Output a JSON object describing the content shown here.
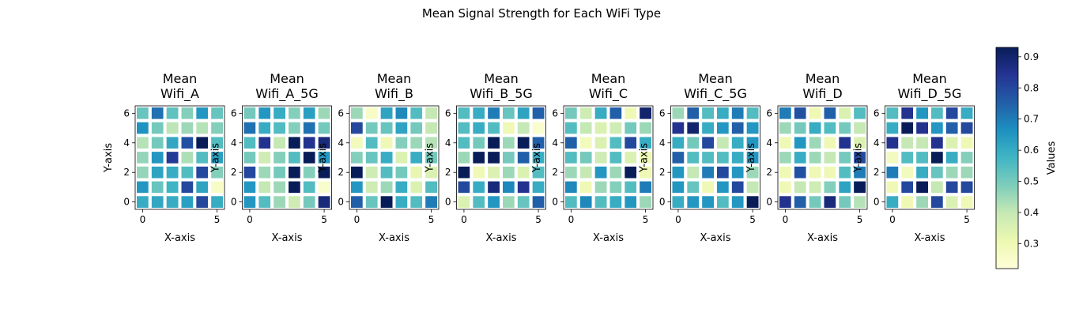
{
  "figure": {
    "title": "Mean Signal Strength for Each WiFi Type"
  },
  "colorbar": {
    "label": "Values",
    "range": [
      0.22,
      0.93
    ],
    "ticks": [
      0.3,
      0.4,
      0.5,
      0.6,
      0.7,
      0.8,
      0.9
    ],
    "colormap": "YlGnBu",
    "colormap_stops": [
      "#ffffd9",
      "#edf8b1",
      "#c7e9b4",
      "#7fcdbb",
      "#41b6c4",
      "#1d91c0",
      "#225ea8",
      "#253494",
      "#081d58"
    ]
  },
  "chart_data": [
    {
      "type": "heatmap",
      "title": "Mean\nWifi_A",
      "xlabel": "X-axis",
      "ylabel": "Y-axis",
      "xticks": [
        0,
        5
      ],
      "yticks": [
        0,
        2,
        4,
        6
      ],
      "xlim": [
        -0.5,
        5.5
      ],
      "ylim": [
        -0.5,
        6.5
      ],
      "rows_from_top": [
        [
          0.52,
          0.72,
          0.53,
          0.48,
          0.65,
          0.52
        ],
        [
          0.66,
          0.5,
          0.41,
          0.45,
          0.42,
          0.48
        ],
        [
          0.42,
          0.5,
          0.61,
          0.78,
          0.93,
          0.55
        ],
        [
          0.46,
          0.65,
          0.83,
          0.43,
          0.55,
          0.63
        ],
        [
          0.46,
          0.62,
          0.6,
          0.55,
          0.8,
          0.48
        ],
        [
          0.65,
          0.52,
          0.58,
          0.8,
          0.62,
          0.26
        ],
        [
          0.6,
          0.61,
          0.6,
          0.63,
          0.8,
          0.6
        ]
      ]
    },
    {
      "type": "heatmap",
      "title": "Mean\nWifi_A_5G",
      "xlabel": "X-axis",
      "ylabel": "Y-axis",
      "xticks": [
        0,
        5
      ],
      "yticks": [
        0,
        2,
        4,
        6
      ],
      "xlim": [
        -0.5,
        5.5
      ],
      "ylim": [
        -0.5,
        6.5
      ],
      "rows_from_top": [
        [
          0.5,
          0.65,
          0.6,
          0.48,
          0.63,
          0.45
        ],
        [
          0.72,
          0.6,
          0.55,
          0.48,
          0.72,
          0.5
        ],
        [
          0.55,
          0.85,
          0.4,
          0.93,
          0.85,
          0.88
        ],
        [
          0.5,
          0.38,
          0.48,
          0.55,
          0.93,
          0.65
        ],
        [
          0.8,
          0.45,
          0.5,
          0.93,
          0.48,
          0.93
        ],
        [
          0.65,
          0.4,
          0.45,
          0.93,
          0.55,
          0.25
        ],
        [
          0.65,
          0.55,
          0.45,
          0.38,
          0.5,
          0.88
        ]
      ]
    },
    {
      "type": "heatmap",
      "title": "Mean\nWifi_B",
      "xlabel": "X-axis",
      "ylabel": "Y-axis",
      "xticks": [
        0,
        5
      ],
      "yticks": [
        0,
        2,
        4,
        6
      ],
      "xlim": [
        -0.5,
        5.5
      ],
      "ylim": [
        -0.5,
        6.5
      ],
      "rows_from_top": [
        [
          0.45,
          0.26,
          0.62,
          0.68,
          0.55,
          0.4
        ],
        [
          0.8,
          0.5,
          0.52,
          0.62,
          0.5,
          0.4
        ],
        [
          0.28,
          0.55,
          0.3,
          0.48,
          0.45,
          0.42
        ],
        [
          0.48,
          0.52,
          0.6,
          0.35,
          0.6,
          0.5
        ],
        [
          0.93,
          0.38,
          0.55,
          0.5,
          0.32,
          0.35
        ],
        [
          0.65,
          0.38,
          0.45,
          0.6,
          0.35,
          0.55
        ],
        [
          0.75,
          0.52,
          0.93,
          0.6,
          0.55,
          0.7
        ]
      ]
    },
    {
      "type": "heatmap",
      "title": "Mean\nWifi_B_5G",
      "xlabel": "X-axis",
      "ylabel": "Y-axis",
      "xticks": [
        0,
        5
      ],
      "yticks": [
        0,
        2,
        4,
        6
      ],
      "xlim": [
        -0.5,
        5.5
      ],
      "ylim": [
        -0.5,
        6.5
      ],
      "rows_from_top": [
        [
          0.55,
          0.6,
          0.7,
          0.52,
          0.62,
          0.75
        ],
        [
          0.55,
          0.6,
          0.55,
          0.3,
          0.4,
          0.25
        ],
        [
          0.55,
          0.5,
          0.93,
          0.45,
          0.93,
          0.75
        ],
        [
          0.45,
          0.93,
          0.93,
          0.5,
          0.75,
          0.6
        ],
        [
          0.93,
          0.3,
          0.35,
          0.45,
          0.35,
          0.55
        ],
        [
          0.8,
          0.6,
          0.88,
          0.68,
          0.85,
          0.6
        ],
        [
          0.35,
          0.55,
          0.65,
          0.45,
          0.52,
          0.75
        ]
      ]
    },
    {
      "type": "heatmap",
      "title": "Mean\nWifi_C",
      "xlabel": "X-axis",
      "ylabel": "Y-axis",
      "xticks": [
        0,
        5
      ],
      "yticks": [
        0,
        2,
        4,
        6
      ],
      "xlim": [
        -0.5,
        5.5
      ],
      "ylim": [
        -0.5,
        6.5
      ],
      "rows_from_top": [
        [
          0.5,
          0.38,
          0.6,
          0.75,
          0.3,
          0.9
        ],
        [
          0.55,
          0.4,
          0.35,
          0.38,
          0.5,
          0.45
        ],
        [
          0.75,
          0.28,
          0.35,
          0.55,
          0.8,
          0.6
        ],
        [
          0.55,
          0.5,
          0.38,
          0.55,
          0.35,
          0.3
        ],
        [
          0.45,
          0.4,
          0.65,
          0.45,
          0.93,
          0.3
        ],
        [
          0.68,
          0.3,
          0.45,
          0.48,
          0.55,
          0.7
        ],
        [
          0.55,
          0.68,
          0.55,
          0.6,
          0.65,
          0.45
        ]
      ]
    },
    {
      "type": "heatmap",
      "title": "Mean\nWifi_C_5G",
      "xlabel": "X-axis",
      "ylabel": "Y-axis",
      "xticks": [
        0,
        5
      ],
      "yticks": [
        0,
        2,
        4,
        6
      ],
      "xlim": [
        -0.5,
        5.5
      ],
      "ylim": [
        -0.5,
        6.5
      ],
      "rows_from_top": [
        [
          0.45,
          0.75,
          0.55,
          0.6,
          0.7,
          0.55
        ],
        [
          0.85,
          0.9,
          0.6,
          0.65,
          0.75,
          0.65
        ],
        [
          0.6,
          0.5,
          0.8,
          0.4,
          0.6,
          0.65
        ],
        [
          0.75,
          0.55,
          0.55,
          0.55,
          0.6,
          0.65
        ],
        [
          0.65,
          0.4,
          0.7,
          0.8,
          0.65,
          0.45
        ],
        [
          0.65,
          0.52,
          0.3,
          0.65,
          0.8,
          0.4
        ],
        [
          0.6,
          0.65,
          0.65,
          0.55,
          0.65,
          0.93
        ]
      ]
    },
    {
      "type": "heatmap",
      "title": "Mean\nWifi_D",
      "xlabel": "X-axis",
      "ylabel": "Y-axis",
      "xticks": [
        0,
        5
      ],
      "yticks": [
        0,
        2,
        4,
        6
      ],
      "xlim": [
        -0.5,
        5.5
      ],
      "ylim": [
        -0.5,
        6.5
      ],
      "rows_from_top": [
        [
          0.7,
          0.78,
          0.3,
          0.75,
          0.35,
          0.55
        ],
        [
          0.45,
          0.5,
          0.6,
          0.55,
          0.5,
          0.4
        ],
        [
          0.3,
          0.65,
          0.45,
          0.3,
          0.85,
          0.35
        ],
        [
          0.45,
          0.6,
          0.45,
          0.4,
          0.5,
          0.8
        ],
        [
          0.3,
          0.78,
          0.3,
          0.3,
          0.55,
          0.7
        ],
        [
          0.3,
          0.4,
          0.38,
          0.48,
          0.62,
          0.93
        ],
        [
          0.85,
          0.75,
          0.5,
          0.88,
          0.5,
          0.42
        ]
      ]
    },
    {
      "type": "heatmap",
      "title": "Mean\nWifi_D_5G",
      "xlabel": "X-axis",
      "ylabel": "Y-axis",
      "xticks": [
        0,
        5
      ],
      "yticks": [
        0,
        2,
        4,
        6
      ],
      "xlim": [
        -0.5,
        5.5
      ],
      "ylim": [
        -0.5,
        6.5
      ],
      "rows_from_top": [
        [
          0.55,
          0.85,
          0.65,
          0.55,
          0.8,
          0.6
        ],
        [
          0.6,
          0.93,
          0.85,
          0.65,
          0.75,
          0.8
        ],
        [
          0.85,
          0.4,
          0.4,
          0.85,
          0.35,
          0.3
        ],
        [
          0.28,
          0.55,
          0.55,
          0.93,
          0.6,
          0.48
        ],
        [
          0.7,
          0.28,
          0.6,
          0.52,
          0.45,
          0.45
        ],
        [
          0.3,
          0.8,
          0.93,
          0.4,
          0.8,
          0.8
        ],
        [
          0.6,
          0.3,
          0.45,
          0.8,
          0.35,
          0.3
        ]
      ]
    }
  ]
}
